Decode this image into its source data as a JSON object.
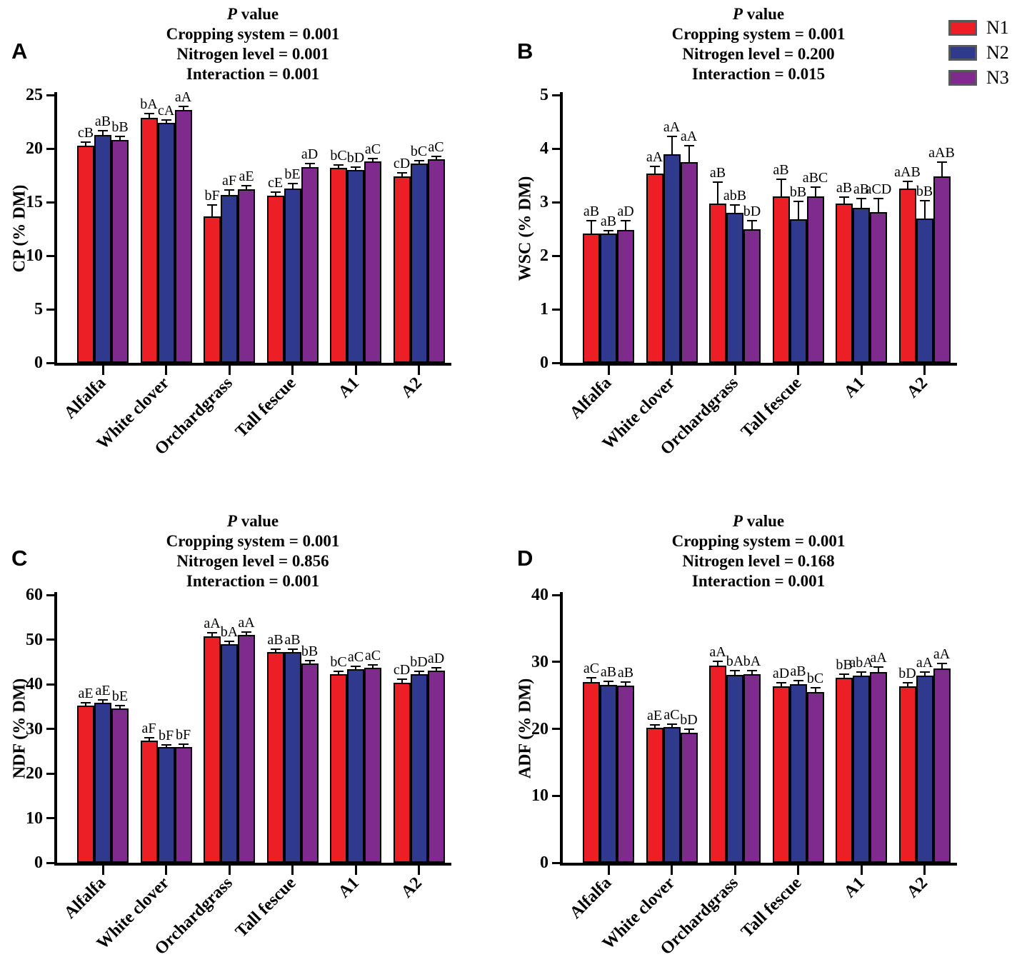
{
  "legend": {
    "items": [
      {
        "label": "N1",
        "color": "#EC1F27"
      },
      {
        "label": "N2",
        "color": "#2F3A8F"
      },
      {
        "label": "N3",
        "color": "#7F2A8D"
      }
    ],
    "swatch_border": "#57585a"
  },
  "categories": [
    "Alfalfa",
    "White clover",
    "Orchardgrass",
    "Tall fescue",
    "A1",
    "A2"
  ],
  "chart_data": [
    {
      "type": "bar",
      "panel_label": "A",
      "title": {
        "head_italic": "P",
        "head_rest": " value",
        "lines": [
          "Cropping system = 0.001",
          "Nitrogen level = 0.001",
          "Interaction = 0.001"
        ]
      },
      "ylabel": "CP (% DM)",
      "ylim": [
        0,
        25
      ],
      "yticks": [
        0,
        5,
        10,
        15,
        20,
        25
      ],
      "series": [
        {
          "name": "N1",
          "values": [
            20.3,
            22.9,
            13.7,
            15.6,
            18.2,
            17.4
          ],
          "errors": [
            0.25,
            0.3,
            1.0,
            0.3,
            0.2,
            0.25
          ],
          "letters": [
            "cB",
            "bA",
            "bF",
            "cE",
            "bC",
            "cD"
          ]
        },
        {
          "name": "N2",
          "values": [
            21.3,
            22.4,
            15.7,
            16.3,
            18.0,
            18.6
          ],
          "errors": [
            0.3,
            0.2,
            0.35,
            0.35,
            0.2,
            0.2
          ],
          "letters": [
            "aB",
            "cA",
            "aF",
            "bE",
            "bD",
            "bC"
          ]
        },
        {
          "name": "N3",
          "values": [
            20.8,
            23.6,
            16.2,
            18.3,
            18.8,
            19.0
          ],
          "errors": [
            0.3,
            0.3,
            0.3,
            0.25,
            0.2,
            0.2
          ],
          "letters": [
            "bB",
            "aA",
            "aE",
            "aD",
            "aC",
            "aC"
          ]
        }
      ]
    },
    {
      "type": "bar",
      "panel_label": "B",
      "title": {
        "head_italic": "P",
        "head_rest": " value",
        "lines": [
          "Cropping system = 0.001",
          "Nitrogen level = 0.200",
          "Interaction = 0.015"
        ]
      },
      "ylabel": "WSC (% DM)",
      "ylim": [
        0,
        5
      ],
      "yticks": [
        0,
        1,
        2,
        3,
        4,
        5
      ],
      "series": [
        {
          "name": "N1",
          "values": [
            2.41,
            3.53,
            2.98,
            3.11,
            2.98,
            3.26
          ],
          "errors": [
            0.23,
            0.13,
            0.38,
            0.3,
            0.1,
            0.12
          ],
          "letters": [
            "aB",
            "aA",
            "aB",
            "aB",
            "aB",
            "aAB"
          ]
        },
        {
          "name": "N2",
          "values": [
            2.41,
            3.89,
            2.8,
            2.68,
            2.9,
            2.7
          ],
          "errors": [
            0.05,
            0.33,
            0.13,
            0.32,
            0.15,
            0.32
          ],
          "letters": [
            "aB",
            "aA",
            "abB",
            "bB",
            "aB",
            "bB"
          ]
        },
        {
          "name": "N3",
          "values": [
            2.48,
            3.75,
            2.49,
            3.11,
            2.81,
            3.48
          ],
          "errors": [
            0.16,
            0.29,
            0.15,
            0.16,
            0.24,
            0.25
          ],
          "letters": [
            "aD",
            "aA",
            "bD",
            "aBC",
            "aCD",
            "aAB"
          ]
        }
      ]
    },
    {
      "type": "bar",
      "panel_label": "C",
      "title": {
        "head_italic": "P",
        "head_rest": " value",
        "lines": [
          "Cropping system = 0.001",
          "Nitrogen level = 0.856",
          "Interaction = 0.001"
        ]
      },
      "ylabel": "NDF (% DM)",
      "ylim": [
        0,
        60
      ],
      "yticks": [
        0,
        10,
        20,
        30,
        40,
        50,
        60
      ],
      "series": [
        {
          "name": "N1",
          "values": [
            35.2,
            27.3,
            50.8,
            47.2,
            42.3,
            40.4
          ],
          "errors": [
            0.5,
            0.5,
            0.6,
            0.5,
            0.4,
            0.5
          ],
          "letters": [
            "aE",
            "aF",
            "aA",
            "aB",
            "bC",
            "cD"
          ]
        },
        {
          "name": "N2",
          "values": [
            35.8,
            25.9,
            49.0,
            47.2,
            43.3,
            42.3
          ],
          "errors": [
            0.5,
            0.4,
            0.5,
            0.5,
            0.5,
            0.4
          ],
          "letters": [
            "aE",
            "bF",
            "bA",
            "aB",
            "aC",
            "bD"
          ]
        },
        {
          "name": "N3",
          "values": [
            34.6,
            26.0,
            51.0,
            44.7,
            43.7,
            43.0
          ],
          "errors": [
            0.5,
            0.4,
            0.5,
            0.4,
            0.5,
            0.6
          ],
          "letters": [
            "bE",
            "bF",
            "aA",
            "bB",
            "aC",
            "aD"
          ]
        }
      ]
    },
    {
      "type": "bar",
      "panel_label": "D",
      "title": {
        "head_italic": "P",
        "head_rest": " value",
        "lines": [
          "Cropping system = 0.001",
          "Nitrogen level = 0.168",
          "Interaction = 0.001"
        ]
      },
      "ylabel": "ADF (% DM)",
      "ylim": [
        0,
        40
      ],
      "yticks": [
        0,
        10,
        20,
        30,
        40
      ],
      "series": [
        {
          "name": "N1",
          "values": [
            27.0,
            20.2,
            29.4,
            26.3,
            27.6,
            26.3
          ],
          "errors": [
            0.5,
            0.3,
            0.6,
            0.5,
            0.5,
            0.5
          ],
          "letters": [
            "aC",
            "aE",
            "aA",
            "aD",
            "bB",
            "bD"
          ]
        },
        {
          "name": "N2",
          "values": [
            26.6,
            20.3,
            28.1,
            26.7,
            27.9,
            28.0
          ],
          "errors": [
            0.4,
            0.3,
            0.5,
            0.4,
            0.5,
            0.4
          ],
          "letters": [
            "aB",
            "aC",
            "bA",
            "aB",
            "abA",
            "aA"
          ]
        },
        {
          "name": "N3",
          "values": [
            26.5,
            19.4,
            28.2,
            25.5,
            28.5,
            29.0
          ],
          "errors": [
            0.4,
            0.4,
            0.4,
            0.5,
            0.6,
            0.7
          ],
          "letters": [
            "aB",
            "bD",
            "bA",
            "bC",
            "aA",
            "aA"
          ]
        }
      ]
    }
  ]
}
